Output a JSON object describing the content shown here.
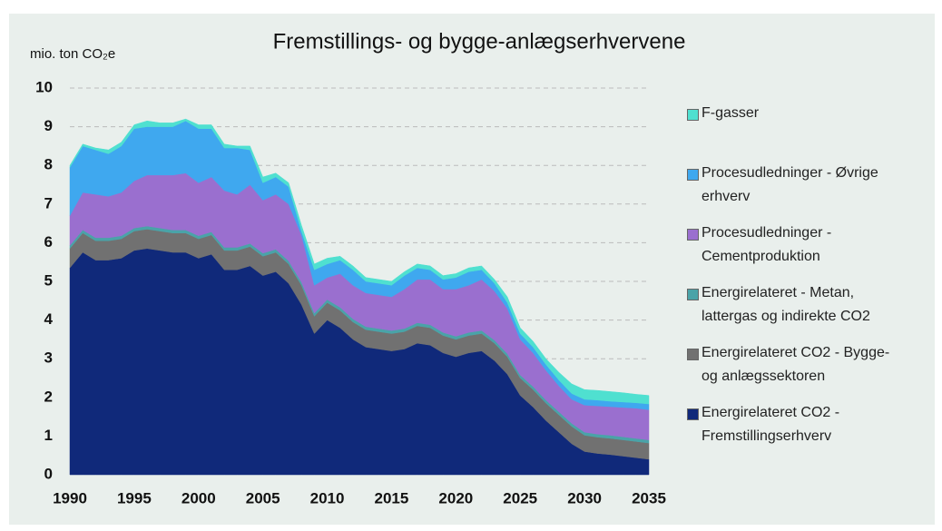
{
  "chart_data": {
    "type": "stacked_area",
    "title": "Fremstillings- og bygge-anlægserhvervene",
    "y_label": "mio. ton CO₂e",
    "x": [
      1990,
      1991,
      1992,
      1993,
      1994,
      1995,
      1996,
      1997,
      1998,
      1999,
      2000,
      2001,
      2002,
      2003,
      2004,
      2005,
      2006,
      2007,
      2008,
      2009,
      2010,
      2011,
      2012,
      2013,
      2014,
      2015,
      2016,
      2017,
      2018,
      2019,
      2020,
      2021,
      2022,
      2023,
      2024,
      2025,
      2026,
      2027,
      2028,
      2029,
      2030,
      2031,
      2032,
      2033,
      2034,
      2035
    ],
    "xlim": [
      1990,
      2035
    ],
    "xticks": [
      1990,
      1995,
      2000,
      2005,
      2010,
      2015,
      2020,
      2025,
      2030,
      2035
    ],
    "ylim": [
      0,
      10
    ],
    "yticks": [
      0,
      1,
      2,
      3,
      4,
      5,
      6,
      7,
      8,
      9,
      10
    ],
    "grid": true,
    "series": [
      {
        "name": "Energirelateret CO2 - Fremstillingserhverv",
        "color": "#10297a",
        "values": [
          5.35,
          5.75,
          5.55,
          5.55,
          5.6,
          5.8,
          5.85,
          5.8,
          5.75,
          5.75,
          5.6,
          5.7,
          5.3,
          5.3,
          5.4,
          5.15,
          5.25,
          4.95,
          4.4,
          3.65,
          4.0,
          3.8,
          3.5,
          3.3,
          3.25,
          3.2,
          3.25,
          3.4,
          3.35,
          3.15,
          3.05,
          3.15,
          3.2,
          2.95,
          2.6,
          2.05,
          1.75,
          1.4,
          1.1,
          0.8,
          0.6,
          0.55,
          0.52,
          0.48,
          0.44,
          0.4
        ]
      },
      {
        "name": "Energirelateret CO2 - Bygge- og anlægssektoren",
        "color": "#717171",
        "values": [
          0.5,
          0.5,
          0.5,
          0.5,
          0.5,
          0.5,
          0.5,
          0.5,
          0.5,
          0.5,
          0.5,
          0.5,
          0.5,
          0.5,
          0.5,
          0.5,
          0.5,
          0.5,
          0.5,
          0.45,
          0.45,
          0.45,
          0.45,
          0.45,
          0.45,
          0.45,
          0.45,
          0.45,
          0.45,
          0.45,
          0.45,
          0.45,
          0.45,
          0.45,
          0.45,
          0.45,
          0.45,
          0.45,
          0.45,
          0.45,
          0.42,
          0.42,
          0.42,
          0.42,
          0.42,
          0.42
        ]
      },
      {
        "name": "Energirelateret - Metan, lattergas og indirekte CO2",
        "color": "#4aa3a8",
        "values": [
          0.08,
          0.08,
          0.08,
          0.08,
          0.08,
          0.08,
          0.08,
          0.08,
          0.08,
          0.08,
          0.08,
          0.08,
          0.08,
          0.08,
          0.08,
          0.08,
          0.08,
          0.08,
          0.08,
          0.08,
          0.08,
          0.08,
          0.08,
          0.08,
          0.08,
          0.08,
          0.08,
          0.08,
          0.08,
          0.08,
          0.08,
          0.08,
          0.08,
          0.08,
          0.08,
          0.08,
          0.08,
          0.08,
          0.08,
          0.08,
          0.08,
          0.08,
          0.08,
          0.08,
          0.08,
          0.08
        ]
      },
      {
        "name": "Procesudledninger - Cementproduktion",
        "color": "#9a6fcf",
        "values": [
          0.77,
          0.97,
          1.12,
          1.07,
          1.12,
          1.22,
          1.32,
          1.37,
          1.42,
          1.47,
          1.37,
          1.42,
          1.47,
          1.37,
          1.52,
          1.37,
          1.42,
          1.47,
          1.22,
          0.72,
          0.57,
          0.87,
          0.87,
          0.87,
          0.87,
          0.87,
          1.02,
          1.12,
          1.17,
          1.12,
          1.22,
          1.22,
          1.32,
          1.27,
          1.17,
          0.92,
          0.87,
          0.77,
          0.67,
          0.62,
          0.7,
          0.73,
          0.74,
          0.76,
          0.78,
          0.78
        ]
      },
      {
        "name": "Procesudledninger - Øvrige erhverv",
        "color": "#3fa8ef",
        "values": [
          1.25,
          1.2,
          1.15,
          1.1,
          1.2,
          1.35,
          1.25,
          1.25,
          1.25,
          1.35,
          1.4,
          1.25,
          1.1,
          1.2,
          0.9,
          0.45,
          0.45,
          0.45,
          0.1,
          0.4,
          0.35,
          0.35,
          0.4,
          0.3,
          0.3,
          0.3,
          0.35,
          0.3,
          0.25,
          0.25,
          0.3,
          0.35,
          0.25,
          0.2,
          0.15,
          0.15,
          0.15,
          0.15,
          0.15,
          0.15,
          0.15,
          0.15,
          0.14,
          0.14,
          0.14,
          0.15
        ]
      },
      {
        "name": "F-gasser",
        "color": "#4fe0d0",
        "values": [
          0.05,
          0.05,
          0.05,
          0.1,
          0.1,
          0.1,
          0.15,
          0.1,
          0.1,
          0.05,
          0.1,
          0.1,
          0.1,
          0.05,
          0.1,
          0.15,
          0.1,
          0.1,
          0.15,
          0.15,
          0.15,
          0.1,
          0.1,
          0.1,
          0.1,
          0.1,
          0.1,
          0.1,
          0.1,
          0.1,
          0.1,
          0.1,
          0.1,
          0.1,
          0.15,
          0.15,
          0.15,
          0.15,
          0.2,
          0.25,
          0.25,
          0.25,
          0.25,
          0.24,
          0.22,
          0.22
        ]
      }
    ]
  }
}
